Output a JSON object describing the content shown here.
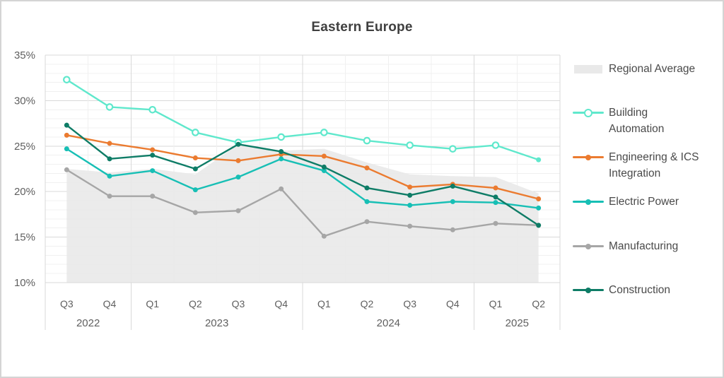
{
  "title": "Eastern Europe",
  "chart_data": {
    "type": "line",
    "title": "Eastern Europe",
    "x": {
      "quarters": [
        "Q3",
        "Q4",
        "Q1",
        "Q2",
        "Q3",
        "Q4",
        "Q1",
        "Q2",
        "Q3",
        "Q4",
        "Q1",
        "Q2"
      ],
      "year_groups": [
        {
          "label": "2022",
          "count": 2
        },
        {
          "label": "2023",
          "count": 4
        },
        {
          "label": "2024",
          "count": 4
        },
        {
          "label": "2025",
          "count": 2
        }
      ]
    },
    "y": {
      "min": 10,
      "max": 35,
      "major_step": 5,
      "minor_step": 1,
      "unit": "%",
      "ticks": [
        {
          "value": 35,
          "label": "35%"
        },
        {
          "value": 30,
          "label": "30%"
        },
        {
          "value": 25,
          "label": "25%"
        },
        {
          "value": 20,
          "label": "20%"
        },
        {
          "value": 15,
          "label": "15%"
        },
        {
          "value": 10,
          "label": "10%"
        }
      ]
    },
    "grid": true,
    "legend_position": "right",
    "area_series": {
      "name": "Regional Average",
      "legend_lines": [
        "Regional Average"
      ],
      "color": "#e9e9e9",
      "values": [
        22.5,
        22.1,
        22.5,
        21.9,
        25.2,
        24.5,
        24.7,
        23.2,
        21.9,
        21.7,
        21.6,
        19.8
      ]
    },
    "series": [
      {
        "name": "Building Automation",
        "legend_lines": [
          "Building",
          "Automation"
        ],
        "color": "#5fe8cc",
        "marker": "open",
        "last_marker_filled": true,
        "values": [
          32.3,
          29.3,
          29.0,
          26.5,
          25.4,
          26.0,
          26.5,
          25.6,
          25.1,
          24.7,
          25.1,
          23.5
        ]
      },
      {
        "name": "Engineering & ICS Integration",
        "legend_lines": [
          "Engineering & ICS",
          "Integration"
        ],
        "color": "#eb7b30",
        "marker": "filled",
        "values": [
          26.2,
          25.3,
          24.6,
          23.7,
          23.4,
          24.1,
          23.9,
          22.6,
          20.5,
          20.8,
          20.4,
          19.2
        ]
      },
      {
        "name": "Electric Power",
        "legend_lines": [
          "Electric Power"
        ],
        "color": "#17bfb5",
        "marker": "filled",
        "values": [
          24.7,
          21.7,
          22.3,
          20.2,
          21.6,
          23.6,
          22.3,
          18.9,
          18.5,
          18.9,
          18.8,
          18.2
        ]
      },
      {
        "name": "Manufacturing",
        "legend_lines": [
          "Manufacturing"
        ],
        "color": "#a6a6a6",
        "marker": "filled",
        "values": [
          22.4,
          19.5,
          19.5,
          17.7,
          17.9,
          20.3,
          15.1,
          16.7,
          16.2,
          15.8,
          16.5,
          16.3
        ]
      },
      {
        "name": "Construction",
        "legend_lines": [
          "Construction"
        ],
        "color": "#0e7c66",
        "marker": "filled",
        "values": [
          27.3,
          23.6,
          24.0,
          22.5,
          25.2,
          24.4,
          22.7,
          20.4,
          19.6,
          20.6,
          19.4,
          16.3
        ]
      }
    ],
    "colors": {
      "grid_minor": "#f0f0f0",
      "grid_major": "#d9d9d9",
      "axis_text": "#5f5f5f",
      "title_text": "#3f3f3f",
      "legend_text": "#4a4a4a"
    }
  }
}
